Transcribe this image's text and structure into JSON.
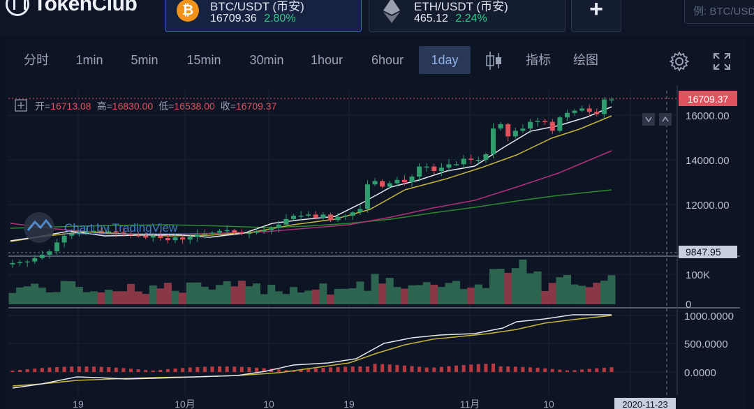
{
  "header": {
    "logo_text": "TokenClub",
    "pairs": [
      {
        "name": "BTC/USDT (币安)",
        "price": "16709.36",
        "change": "2.80%",
        "coin": "bitcoin-icon"
      },
      {
        "name": "ETH/USDT (币安)",
        "price": "465.12",
        "change": "2.24%",
        "coin": "ethereum-icon"
      }
    ],
    "add_label": "+",
    "search_placeholder": "例: BTC/USDT"
  },
  "toolbar": {
    "intervals": [
      "分时",
      "1min",
      "5min",
      "15min",
      "30min",
      "1hour",
      "6hour",
      "1day"
    ],
    "active_interval": "1day",
    "indicator_label": "指标",
    "draw_label": "绘图"
  },
  "ohlc": {
    "open_label": "开=",
    "open": "16713.08",
    "high_label": "高=",
    "high": "16830.00",
    "low_label": "低=",
    "low": "16538.00",
    "close_label": "收=",
    "close": "16709.37"
  },
  "watermark": "Chart by TradingView",
  "price_axis": {
    "last_price": "16709.37",
    "ticks": [
      "16000.00",
      "14000.00",
      "12000.00"
    ],
    "low_marker": "9847.95"
  },
  "volume_axis": {
    "ticks": [
      "100K",
      "0"
    ]
  },
  "osc_axis": {
    "ticks": [
      "1000.0000",
      "500.0000",
      "0.0000"
    ]
  },
  "time_axis": {
    "ticks": [
      "19",
      "10月",
      "10",
      "19",
      "11月",
      "10"
    ],
    "crosshair_date": "2020-11-23"
  },
  "colors": {
    "up": "#2e9e6e",
    "down": "#e0525e",
    "accent": "#3a66c8"
  },
  "chart_data": {
    "type": "candlestick",
    "closes": [
      9380,
      9420,
      9450,
      9600,
      9750,
      9900,
      10300,
      10600,
      10700,
      10750,
      10780,
      10820,
      10790,
      10800,
      10750,
      10700,
      10620,
      10600,
      10520,
      10600,
      10500,
      10400,
      10530,
      10430,
      10550,
      10650,
      10700,
      10740,
      10820,
      10850,
      10750,
      10700,
      10730,
      10800,
      10850,
      10950,
      11100,
      11350,
      11500,
      11500,
      11550,
      11400,
      11550,
      11300,
      11450,
      11500,
      11650,
      11800,
      12900,
      13050,
      12800,
      12950,
      13100,
      13000,
      13250,
      13700,
      13700,
      13500,
      13650,
      13800,
      13800,
      14050,
      14000,
      14000,
      14250,
      15400,
      15600,
      15050,
      15300,
      15400,
      15700,
      15750,
      15700,
      15300,
      15900,
      16100,
      16200,
      16300,
      16150,
      16050,
      16700,
      16709
    ],
    "ma_short_last": 16400,
    "ma_mid_last": 16000,
    "ma_long1_last": 14350,
    "ma_long2_last": 12650,
    "volume_max": "100K",
    "osc_max": "1000.0000"
  }
}
